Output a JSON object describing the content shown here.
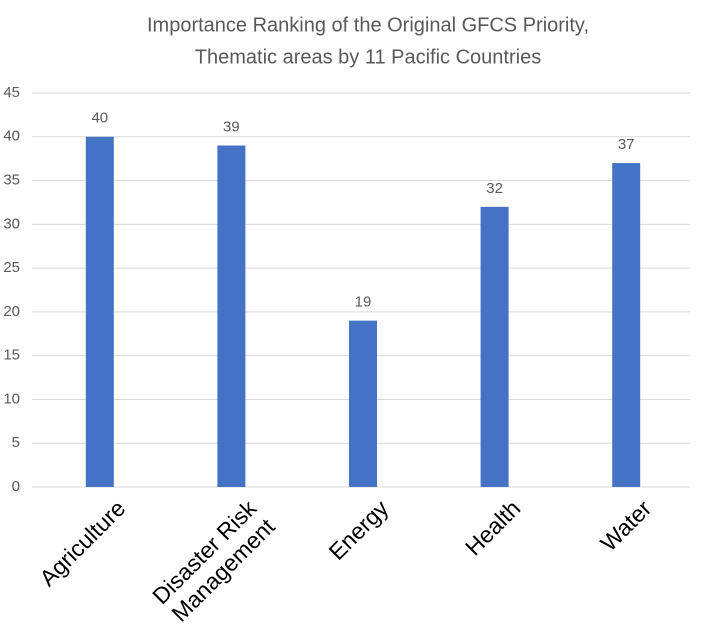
{
  "chart_data": {
    "type": "bar",
    "title": [
      "Importance Ranking of the Original GFCS Priority,",
      "Thematic areas by 11 Pacific Countries"
    ],
    "categories": [
      "Agriculture",
      "Disaster Risk Management",
      "Energy",
      "Health",
      "Water"
    ],
    "values": [
      40,
      39,
      19,
      32,
      37
    ],
    "color": "#4472c4",
    "ylim": [
      0,
      45
    ],
    "yticks": [
      0,
      5,
      10,
      15,
      20,
      25,
      30,
      35,
      40,
      45
    ],
    "grid": true
  }
}
